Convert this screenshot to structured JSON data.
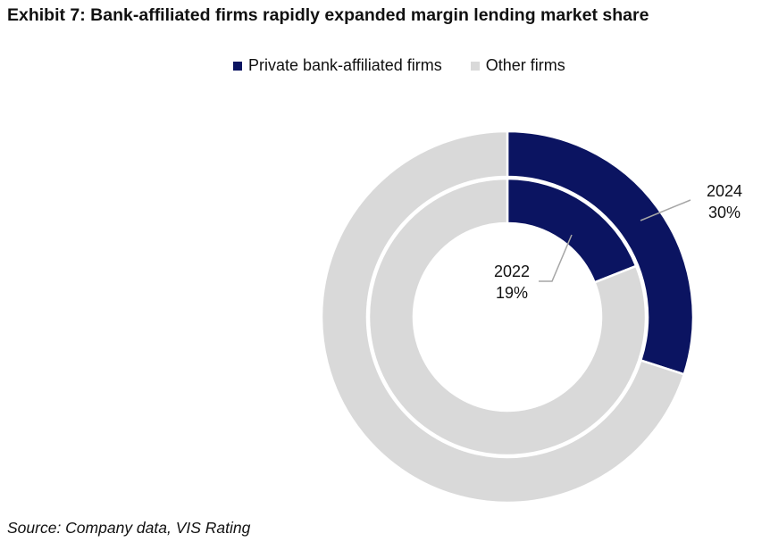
{
  "title": "Exhibit 7: Bank-affiliated firms rapidly expanded margin lending market share",
  "source": "Source: Company data, VIS Rating",
  "colors": {
    "bank": "#0b1461",
    "other": "#d9d9d9"
  },
  "chart_data": {
    "type": "donut",
    "title": "Exhibit 7: Bank-affiliated firms rapidly expanded margin lending market share",
    "legend": [
      "Private bank-affiliated firms",
      "Other firms"
    ],
    "legend_position": "top",
    "rings": [
      {
        "name": "2024",
        "position": "outer",
        "values": [
          30,
          70
        ],
        "label": "30%"
      },
      {
        "name": "2022",
        "position": "inner",
        "values": [
          19,
          81
        ],
        "label": "19%"
      }
    ],
    "unit": "%"
  }
}
